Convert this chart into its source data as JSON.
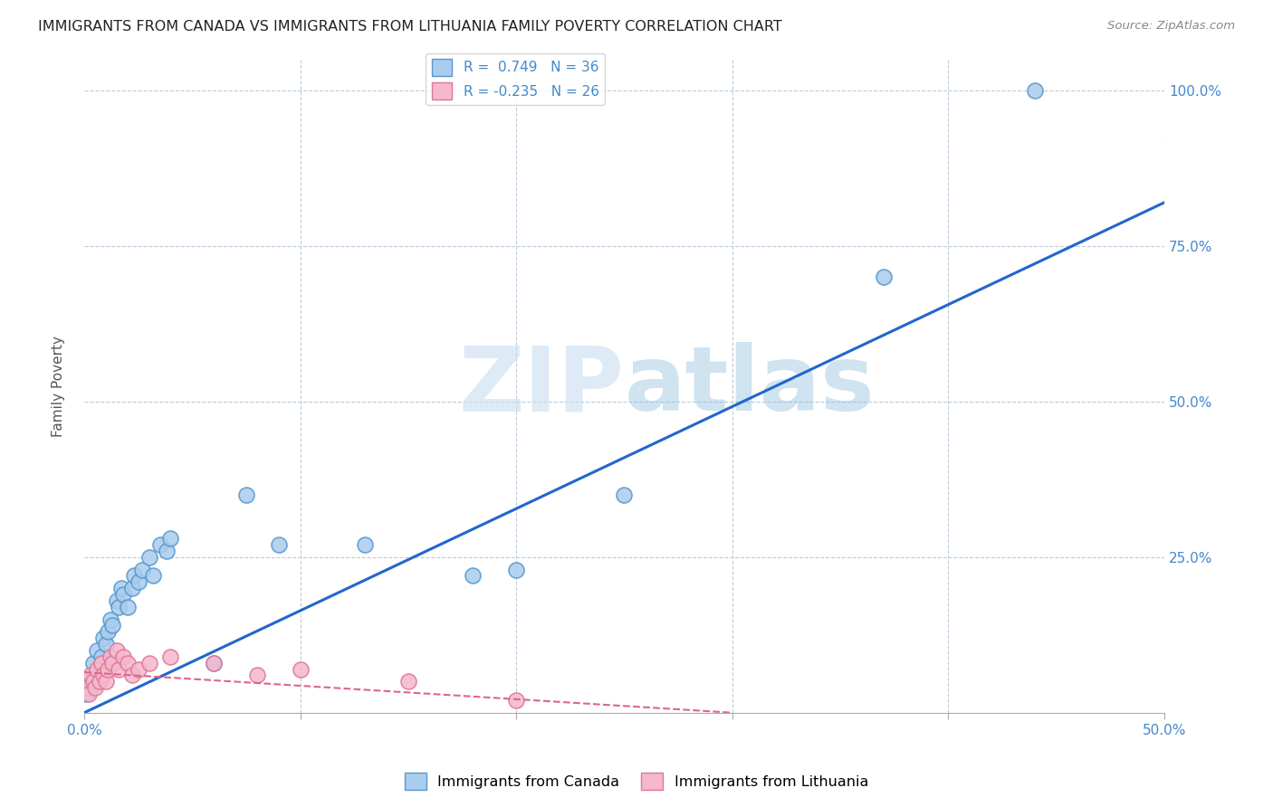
{
  "title": "IMMIGRANTS FROM CANADA VS IMMIGRANTS FROM LITHUANIA FAMILY POVERTY CORRELATION CHART",
  "source": "Source: ZipAtlas.com",
  "ylabel": "Family Poverty",
  "xlim": [
    0.0,
    0.5
  ],
  "ylim": [
    0.0,
    1.05
  ],
  "xtick_vals": [
    0.0,
    0.1,
    0.2,
    0.3,
    0.4,
    0.5
  ],
  "xtick_labels": [
    "0.0%",
    "",
    "",
    "",
    "",
    "50.0%"
  ],
  "ytick_vals": [
    0.25,
    0.5,
    0.75,
    1.0
  ],
  "ytick_labels": [
    "25.0%",
    "50.0%",
    "75.0%",
    "100.0%"
  ],
  "canada_color": "#aaccee",
  "canada_edge_color": "#5599cc",
  "lithuania_color": "#f5b8cc",
  "lithuania_edge_color": "#dd7799",
  "trend_canada_color": "#2266cc",
  "trend_lithuania_color": "#dd6688",
  "R_canada": 0.749,
  "N_canada": 36,
  "R_lithuania": -0.235,
  "N_lithuania": 26,
  "watermark_color": "#ddeeff",
  "canada_x": [
    0.001,
    0.002,
    0.003,
    0.004,
    0.005,
    0.006,
    0.007,
    0.008,
    0.009,
    0.01,
    0.011,
    0.012,
    0.013,
    0.015,
    0.016,
    0.017,
    0.018,
    0.02,
    0.022,
    0.023,
    0.025,
    0.027,
    0.03,
    0.032,
    0.035,
    0.038,
    0.04,
    0.06,
    0.075,
    0.09,
    0.13,
    0.18,
    0.2,
    0.25,
    0.37,
    0.44
  ],
  "canada_y": [
    0.03,
    0.05,
    0.04,
    0.08,
    0.06,
    0.1,
    0.07,
    0.09,
    0.12,
    0.11,
    0.13,
    0.15,
    0.14,
    0.18,
    0.17,
    0.2,
    0.19,
    0.17,
    0.2,
    0.22,
    0.21,
    0.23,
    0.25,
    0.22,
    0.27,
    0.26,
    0.28,
    0.08,
    0.35,
    0.27,
    0.27,
    0.22,
    0.23,
    0.35,
    0.7,
    1.0
  ],
  "lithuania_x": [
    0.001,
    0.002,
    0.003,
    0.004,
    0.005,
    0.006,
    0.007,
    0.008,
    0.009,
    0.01,
    0.011,
    0.012,
    0.013,
    0.015,
    0.016,
    0.018,
    0.02,
    0.022,
    0.025,
    0.03,
    0.04,
    0.06,
    0.08,
    0.1,
    0.15,
    0.2
  ],
  "lithuania_y": [
    0.04,
    0.03,
    0.06,
    0.05,
    0.04,
    0.07,
    0.05,
    0.08,
    0.06,
    0.05,
    0.07,
    0.09,
    0.08,
    0.1,
    0.07,
    0.09,
    0.08,
    0.06,
    0.07,
    0.08,
    0.09,
    0.08,
    0.06,
    0.07,
    0.05,
    0.02
  ],
  "canada_trend_x": [
    0.0,
    0.5
  ],
  "canada_trend_y": [
    0.0,
    0.82
  ],
  "lithuania_trend_x": [
    0.0,
    0.3
  ],
  "lithuania_trend_y": [
    0.065,
    0.0
  ]
}
